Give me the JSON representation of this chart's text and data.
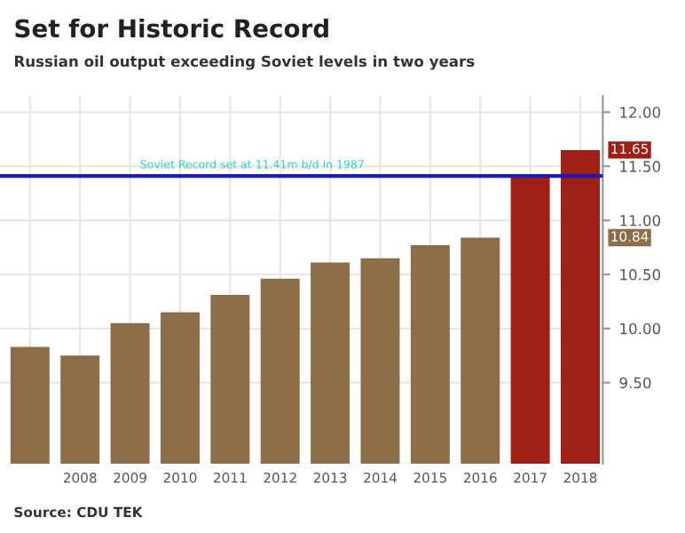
{
  "chart_data": {
    "type": "bar",
    "title": "Set for Historic Record",
    "subtitle": "Russian oil output exceeding Soviet levels in two years",
    "categories": [
      null,
      "2008",
      "2009",
      "2010",
      "2011",
      "2012",
      "2013",
      "2014",
      "2015",
      "2016",
      "2017",
      "2018"
    ],
    "values": [
      9.83,
      9.75,
      10.05,
      10.15,
      10.31,
      10.46,
      10.61,
      10.65,
      10.77,
      10.84,
      11.4,
      11.65
    ],
    "colors": [
      "#8b6d48",
      "#8b6d48",
      "#8b6d48",
      "#8b6d48",
      "#8b6d48",
      "#8b6d48",
      "#8b6d48",
      "#8b6d48",
      "#8b6d48",
      "#8b6d48",
      "#9e1f16",
      "#9e1f16"
    ],
    "ylim": [
      8.75,
      12.15
    ],
    "yticks": [
      {
        "value": 9.5,
        "label": "9.50"
      },
      {
        "value": 10,
        "label": "10.00"
      },
      {
        "value": 10.5,
        "label": "10.50"
      },
      {
        "value": 11,
        "label": "11.00"
      },
      {
        "value": 11.5,
        "label": "11.50"
      },
      {
        "value": 12,
        "label": "12.00"
      }
    ],
    "ref_lines": [
      {
        "axis": "y",
        "value": 11.41,
        "label": "Soviet Record set at 11.41m b/d in 1987",
        "color": "#1c1cb0"
      }
    ],
    "annotations": [
      "11.65",
      "10.84",
      "Source: CDU TEK"
    ],
    "grid": true
  }
}
